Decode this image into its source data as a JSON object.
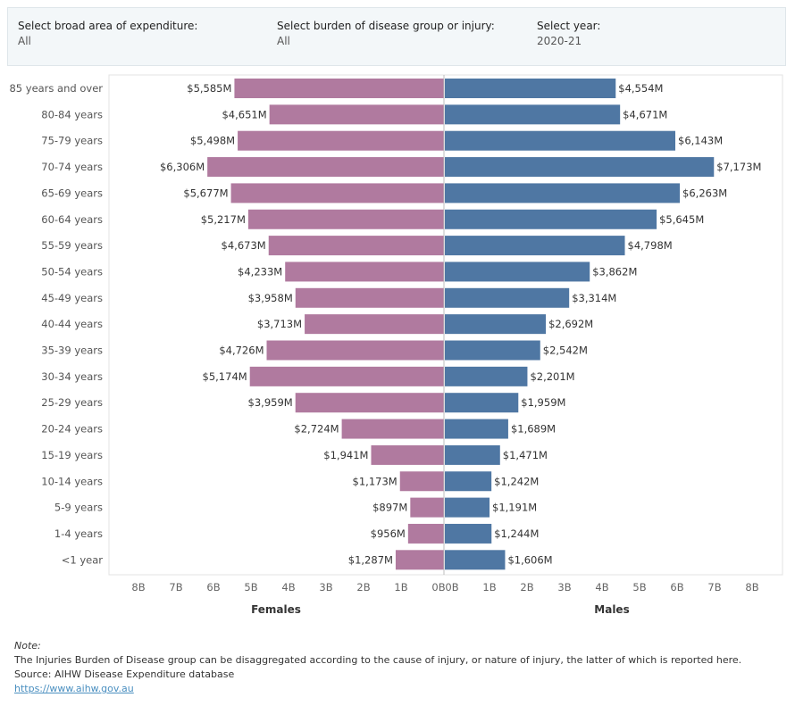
{
  "filters": [
    {
      "label": "Select broad area of expenditure:",
      "value": "All"
    },
    {
      "label": "Select burden of disease group or injury:",
      "value": "All"
    },
    {
      "label": "Select year:",
      "value": "2020-21"
    }
  ],
  "chart_data": {
    "type": "bar",
    "orientation": "horizontal-butterfly",
    "categories": [
      "85 years and over",
      "80-84 years",
      "75-79 years",
      "70-74 years",
      "65-69 years",
      "60-64 years",
      "55-59 years",
      "50-54 years",
      "45-49 years",
      "40-44 years",
      "35-39 years",
      "30-34 years",
      "25-29 years",
      "20-24 years",
      "15-19 years",
      "10-14 years",
      "5-9 years",
      "1-4 years",
      "<1 year"
    ],
    "series": [
      {
        "name": "Females",
        "color": "#b07a9f",
        "values": [
          5585,
          4651,
          5498,
          6306,
          5677,
          5217,
          4673,
          4233,
          3958,
          3713,
          4726,
          5174,
          3959,
          2724,
          1941,
          1173,
          897,
          956,
          1287
        ],
        "labels": [
          "$5,585M",
          "$4,651M",
          "$5,498M",
          "$6,306M",
          "$5,677M",
          "$5,217M",
          "$4,673M",
          "$4,233M",
          "$3,958M",
          "$3,713M",
          "$4,726M",
          "$5,174M",
          "$3,959M",
          "$2,724M",
          "$1,941M",
          "$1,173M",
          "$897M",
          "$956M",
          "$1,287M"
        ]
      },
      {
        "name": "Males",
        "color": "#4f77a3",
        "values": [
          4554,
          4671,
          6143,
          7173,
          6263,
          5645,
          4798,
          3862,
          3314,
          2692,
          2542,
          2201,
          1959,
          1689,
          1471,
          1242,
          1191,
          1244,
          1606
        ],
        "labels": [
          "$4,554M",
          "$4,671M",
          "$6,143M",
          "$7,173M",
          "$6,263M",
          "$5,645M",
          "$4,798M",
          "$3,862M",
          "$3,314M",
          "$2,692M",
          "$2,542M",
          "$2,201M",
          "$1,959M",
          "$1,689M",
          "$1,471M",
          "$1,242M",
          "$1,191M",
          "$1,244M",
          "$1,606M"
        ]
      }
    ],
    "unit": "$M",
    "x_range": [
      0,
      8000
    ],
    "left_ticks": [
      "8B",
      "7B",
      "6B",
      "5B",
      "4B",
      "3B",
      "2B",
      "1B",
      "0B"
    ],
    "right_ticks": [
      "0B",
      "1B",
      "2B",
      "3B",
      "4B",
      "5B",
      "6B",
      "7B",
      "8B"
    ],
    "grid": false
  },
  "notes": {
    "title": "Note:",
    "text": "The Injuries Burden of Disease group can be disaggregated according to the cause of injury, or nature of injury, the latter of which is reported here.",
    "source": "Source: AIHW Disease Expenditure database",
    "link": "https://www.aihw.gov.au"
  }
}
